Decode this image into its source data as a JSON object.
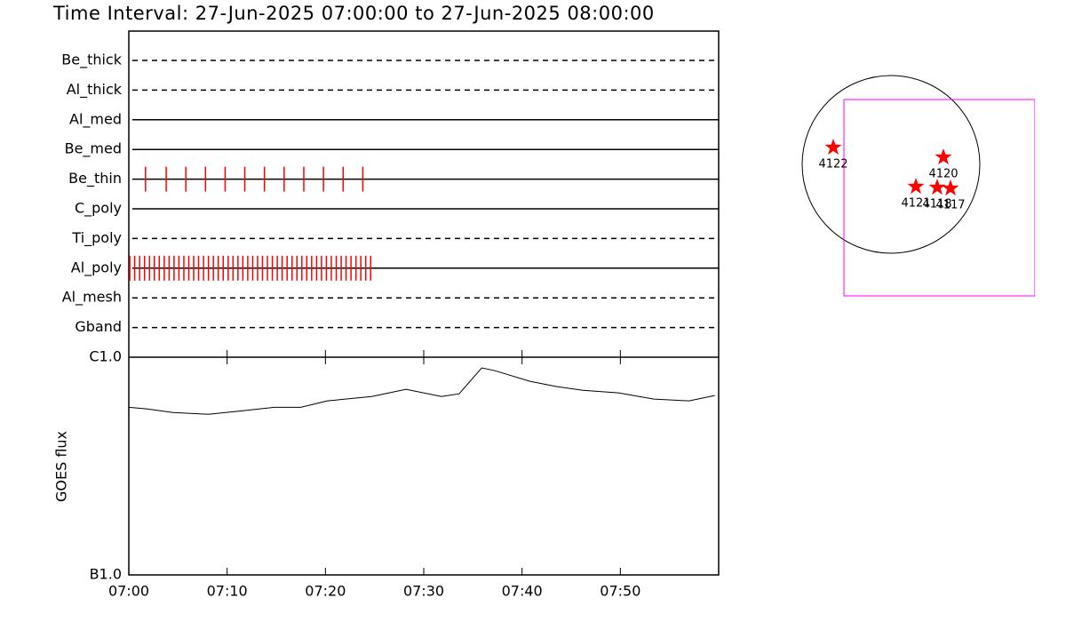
{
  "title": "Time Interval: 27-Jun-2025 07:00:00 to 27-Jun-2025 08:00:00",
  "chart_data": [
    {
      "type": "timeline",
      "xlim": [
        0,
        60
      ],
      "color": "#ff0000",
      "rows": [
        {
          "name": "Be_thick",
          "dashed": true,
          "times": []
        },
        {
          "name": "Al_thick",
          "dashed": true,
          "times": []
        },
        {
          "name": "Al_med",
          "dashed": false,
          "times": []
        },
        {
          "name": "Be_med",
          "dashed": false,
          "times": []
        },
        {
          "name": "Be_thin",
          "dashed": false,
          "times": [
            1.7,
            3.8,
            5.8,
            7.8,
            9.8,
            11.8,
            13.8,
            15.8,
            17.8,
            19.8,
            21.8,
            23.8
          ]
        },
        {
          "name": "C_poly",
          "dashed": false,
          "times": []
        },
        {
          "name": "Ti_poly",
          "dashed": true,
          "times": []
        },
        {
          "name": "Al_poly",
          "dashed": false,
          "times": [
            0.1,
            0.6,
            1.1,
            1.6,
            2.1,
            2.6,
            3.1,
            3.6,
            4.1,
            4.6,
            5.1,
            5.6,
            6.1,
            6.6,
            7.1,
            7.6,
            8.1,
            8.6,
            9.1,
            9.6,
            10.1,
            10.6,
            11.1,
            11.6,
            12.1,
            12.6,
            13.1,
            13.6,
            14.1,
            14.6,
            15.1,
            15.6,
            16.1,
            16.6,
            17.1,
            17.6,
            18.1,
            18.6,
            19.1,
            19.6,
            20.1,
            20.6,
            21.1,
            21.6,
            22.1,
            22.6,
            23.1,
            23.6,
            24.1,
            24.6
          ]
        },
        {
          "name": "Al_mesh",
          "dashed": true,
          "times": []
        },
        {
          "name": "Gband",
          "dashed": true,
          "times": []
        }
      ]
    },
    {
      "type": "line",
      "y_label": "GOES flux",
      "log_scale": true,
      "color": "#000000",
      "xlim": [
        0,
        60
      ],
      "xticks": [
        {
          "value": 0,
          "label": "07:00"
        },
        {
          "value": 10,
          "label": "07:10"
        },
        {
          "value": 20,
          "label": "07:20"
        },
        {
          "value": 30,
          "label": "07:30"
        },
        {
          "value": 40,
          "label": "07:40"
        },
        {
          "value": 50,
          "label": "07:50"
        }
      ],
      "ylim": [
        1e-07,
        1e-06
      ],
      "yticks": [
        {
          "value": 1e-07,
          "label": "B1.0"
        },
        {
          "value": 1e-06,
          "label": "C1.0"
        }
      ],
      "x": [
        0,
        1.8,
        4.5,
        8.1,
        11.7,
        14.8,
        17.5,
        20.2,
        24.7,
        28.2,
        31.8,
        33.6,
        35.9,
        37.2,
        40.8,
        43.5,
        46.2,
        49.8,
        53.4,
        57.0,
        59.6
      ],
      "values": [
        5.89e-07,
        5.79e-07,
        5.57e-07,
        5.47e-07,
        5.68e-07,
        5.89e-07,
        5.89e-07,
        6.3e-07,
        6.6e-07,
        7.12e-07,
        6.6e-07,
        6.79e-07,
        8.93e-07,
        8.68e-07,
        7.75e-07,
        7.33e-07,
        7.05e-07,
        6.86e-07,
        6.42e-07,
        6.3e-07,
        6.67e-07
      ]
    },
    {
      "type": "map",
      "color": "#ff0000",
      "fov_color": "#ff00ff",
      "regions": [
        {
          "label": "4122",
          "x": -0.65,
          "y": 0.19
        },
        {
          "label": "4120",
          "x": 0.59,
          "y": 0.08
        },
        {
          "label": "4121",
          "x": 0.28,
          "y": -0.25
        },
        {
          "label": "4118",
          "x": 0.52,
          "y": -0.26
        },
        {
          "label": "4117",
          "x": 0.67,
          "y": -0.27
        }
      ],
      "fov": {
        "x": [
          -0.53,
          1.62
        ],
        "y": [
          -1.48,
          0.73
        ]
      }
    }
  ]
}
